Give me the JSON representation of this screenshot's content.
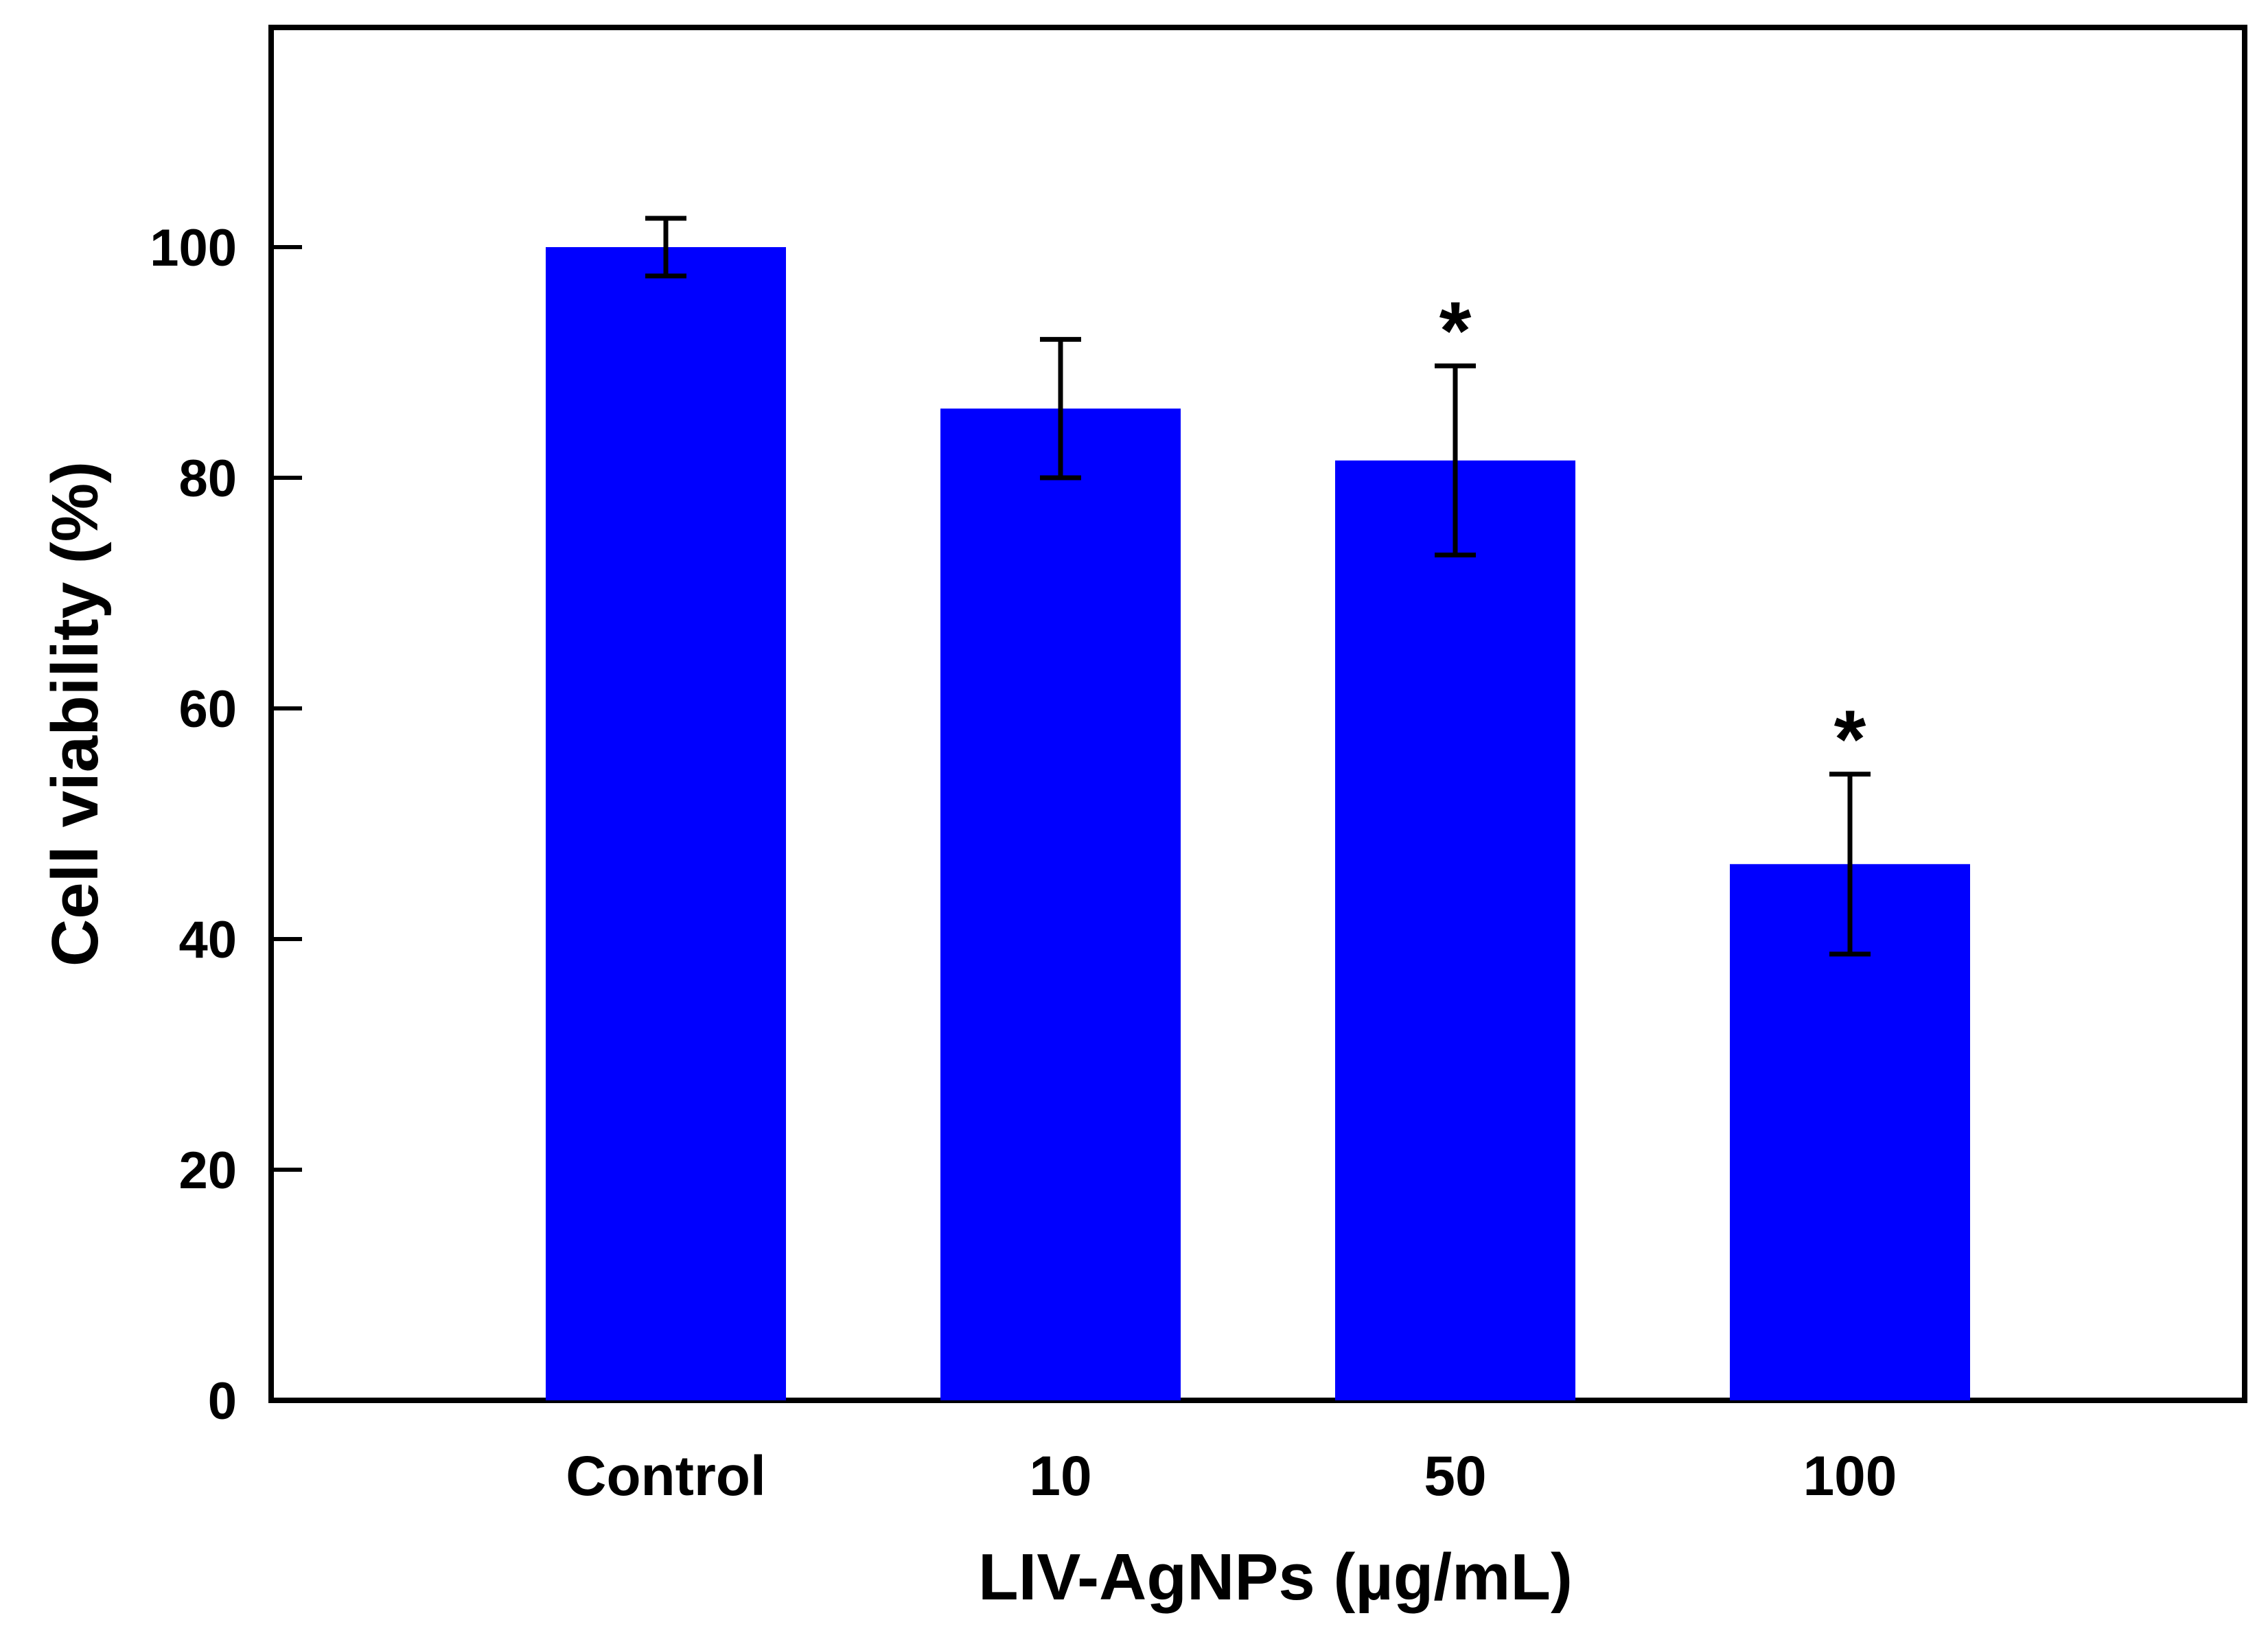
{
  "chart_data": {
    "type": "bar",
    "title": "",
    "xlabel": "LIV-AgNPs (µg/mL)",
    "ylabel": "Cell viability (%)",
    "categories": [
      "Control",
      "10",
      "50",
      "100"
    ],
    "series": [
      {
        "values": [
          100,
          86,
          81.5,
          46.5
        ],
        "errors": [
          2.5,
          6,
          8.2,
          7.8
        ],
        "significance": [
          "",
          "",
          "*",
          "*"
        ]
      }
    ],
    "ylim": [
      0,
      119
    ],
    "yticks": [
      0,
      20,
      40,
      60,
      80,
      100
    ],
    "grid": false,
    "legend": "none",
    "colors": {
      "bar": "#0000ff",
      "axis": "#000000",
      "error_bar": "#000000"
    }
  }
}
